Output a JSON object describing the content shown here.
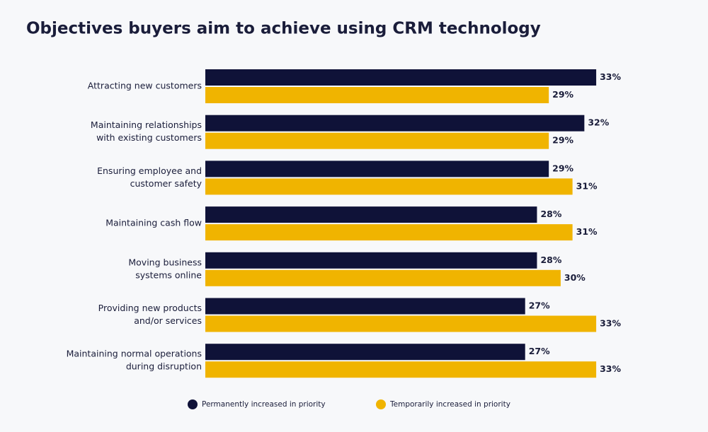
{
  "chart_data": {
    "type": "bar",
    "orientation": "horizontal",
    "title": "Objectives buyers aim to achieve using CRM technology",
    "categories": [
      [
        "Attracting new customers"
      ],
      [
        "Maintaining relationships",
        "with existing customers"
      ],
      [
        "Ensuring employee and",
        "customer safety"
      ],
      [
        "Maintaining cash flow"
      ],
      [
        "Moving business",
        "systems online"
      ],
      [
        "Providing new products",
        "and/or services"
      ],
      [
        "Maintaining normal operations",
        "during disruption"
      ]
    ],
    "series": [
      {
        "name": "Permanently increased in priority",
        "color": "#0f1238",
        "values": [
          33,
          32,
          29,
          28,
          28,
          27,
          27
        ],
        "value_labels": [
          "33%",
          "32%",
          "29%",
          "28%",
          "28%",
          "27%",
          "27%"
        ]
      },
      {
        "name": "Temporarily increased in priority",
        "color": "#f0b400",
        "values": [
          29,
          29,
          31,
          31,
          30,
          33,
          33
        ],
        "value_labels": [
          "29%",
          "29%",
          "31%",
          "31%",
          "30%",
          "33%",
          "33%"
        ]
      }
    ],
    "legend": "bottom"
  }
}
